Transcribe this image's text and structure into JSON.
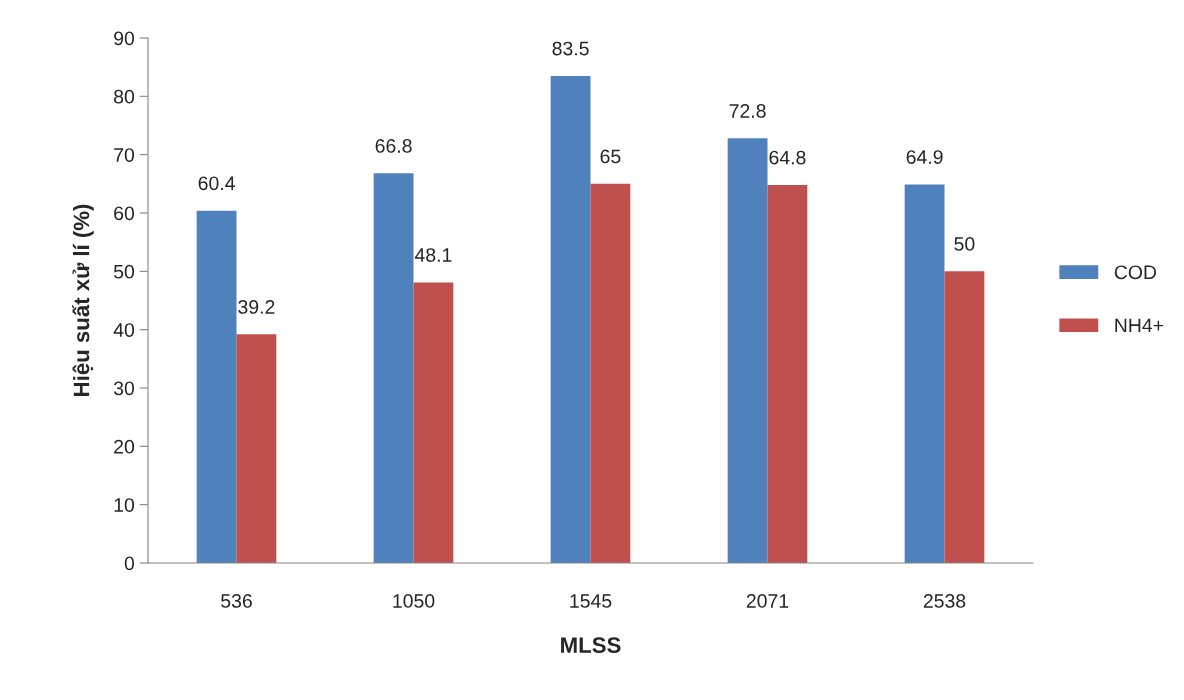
{
  "chart_data": {
    "type": "bar",
    "xlabel": "MLSS",
    "ylabel": "Hiệu suất xử lí (%)",
    "categories": [
      "536",
      "1050",
      "1545",
      "2071",
      "2538"
    ],
    "series": [
      {
        "name": "COD",
        "color": "#4f81bd",
        "values": [
          60.4,
          66.8,
          83.5,
          72.8,
          64.9
        ]
      },
      {
        "name": "NH4+",
        "color": "#c0504d",
        "values": [
          39.2,
          48.1,
          65,
          64.8,
          50
        ]
      }
    ],
    "ylim": [
      0,
      90
    ],
    "yticks": [
      0,
      10,
      20,
      30,
      40,
      50,
      60,
      70,
      80,
      90
    ],
    "data_labels": true,
    "grid": false,
    "legend": "right"
  }
}
